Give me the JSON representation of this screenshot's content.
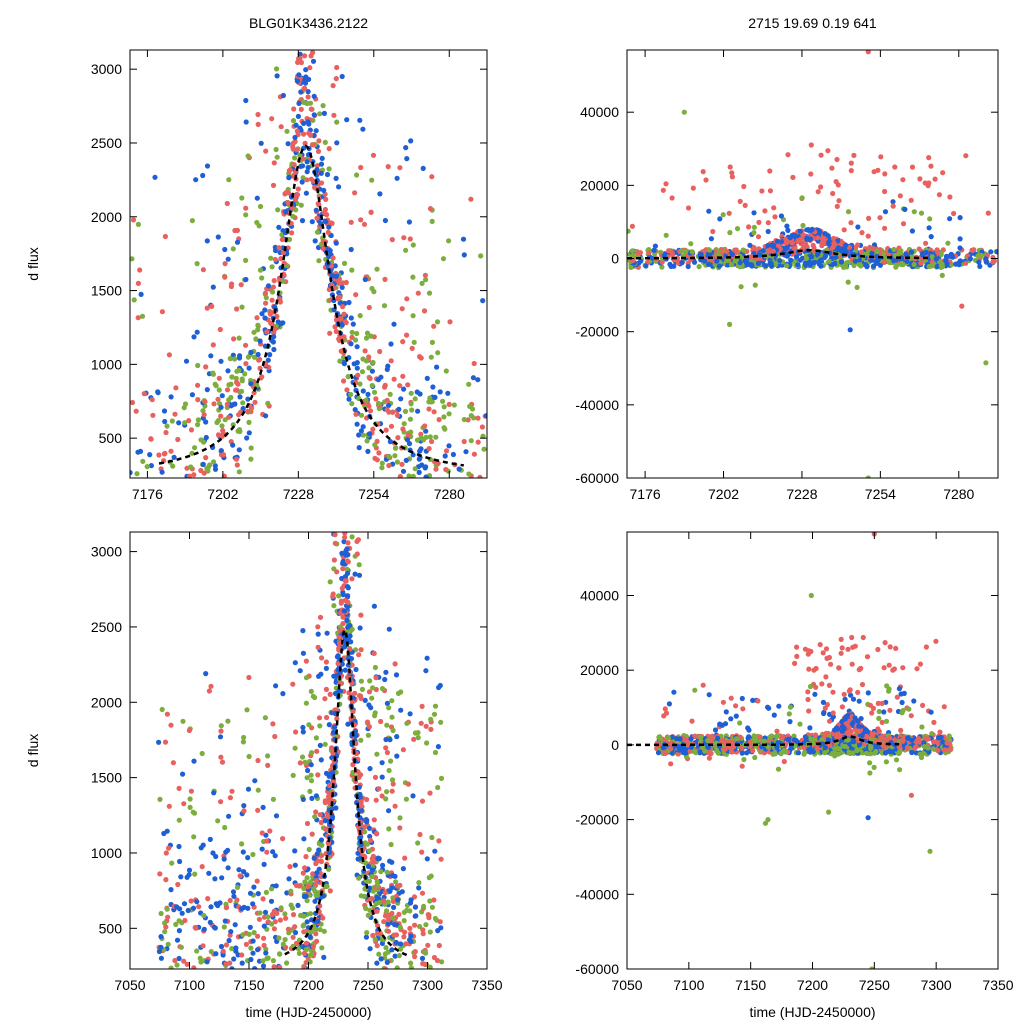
{
  "chart_data": [
    {
      "id": "top-left",
      "type": "scatter",
      "title": "BLG01K3436.2122",
      "xlabel": "",
      "ylabel": "d flux",
      "xlim": [
        7170,
        7293
      ],
      "ylim": [
        230,
        3130
      ],
      "xticks": [
        7176,
        7202,
        7228,
        7254,
        7280
      ],
      "yticks": [
        500,
        1000,
        1500,
        2000,
        2500,
        3000
      ],
      "series": [
        {
          "color": "#7cae3e",
          "role": "green"
        },
        {
          "color": "#1f5fd6",
          "role": "blue"
        },
        {
          "color": "#e8615f",
          "role": "red"
        }
      ],
      "model": {
        "t0": 7230.5,
        "peak": 2480,
        "tE": 10.5,
        "base": 235,
        "style": "dashed",
        "color": "#000000"
      }
    },
    {
      "id": "top-right",
      "type": "scatter",
      "title": "2715  19.69  0.19  641",
      "xlabel": "",
      "ylabel": "",
      "xlim": [
        7170,
        7293
      ],
      "ylim": [
        -60000,
        57000
      ],
      "xticks": [
        7176,
        7202,
        7228,
        7254,
        7280
      ],
      "yticks": [
        -60000,
        -40000,
        -20000,
        0,
        20000,
        40000
      ],
      "series": [
        {
          "color": "#7cae3e",
          "role": "green"
        },
        {
          "color": "#1f5fd6",
          "role": "blue"
        },
        {
          "color": "#e8615f",
          "role": "red"
        }
      ],
      "outliers": [
        {
          "x": 7189,
          "y": 40000,
          "c": 0
        },
        {
          "x": 7250,
          "y": 56500,
          "c": 2
        },
        {
          "x": 7244,
          "y": -19500,
          "c": 1
        },
        {
          "x": 7250,
          "y": -60000,
          "c": 0
        },
        {
          "x": 7289,
          "y": -28500,
          "c": 0
        },
        {
          "x": 7204,
          "y": -18000,
          "c": 0
        },
        {
          "x": 7281,
          "y": -13000,
          "c": 2
        }
      ],
      "model": {
        "t0": 7230.5,
        "peak": 2480,
        "tE": 10.5,
        "base": 235,
        "style": "dashed",
        "color": "#000000"
      }
    },
    {
      "id": "bottom-left",
      "type": "scatter",
      "title": "",
      "xlabel": "time (HJD-2450000)",
      "ylabel": "d flux",
      "xlim": [
        7050,
        7350
      ],
      "ylim": [
        230,
        3130
      ],
      "xticks": [
        7050,
        7100,
        7150,
        7200,
        7250,
        7300,
        7350
      ],
      "yticks": [
        500,
        1000,
        1500,
        2000,
        2500,
        3000
      ],
      "series": [
        {
          "color": "#7cae3e",
          "role": "green"
        },
        {
          "color": "#1f5fd6",
          "role": "blue"
        },
        {
          "color": "#e8615f",
          "role": "red"
        }
      ],
      "model": {
        "t0": 7230.5,
        "peak": 2480,
        "tE": 10.5,
        "base": 235,
        "style": "dashed",
        "color": "#000000"
      }
    },
    {
      "id": "bottom-right",
      "type": "scatter",
      "title": "",
      "xlabel": "time (HJD-2450000)",
      "ylabel": "",
      "xlim": [
        7050,
        7350
      ],
      "ylim": [
        -60000,
        57000
      ],
      "xticks": [
        7050,
        7100,
        7150,
        7200,
        7250,
        7300,
        7350
      ],
      "yticks": [
        -60000,
        -40000,
        -20000,
        0,
        20000,
        40000
      ],
      "series": [
        {
          "color": "#7cae3e",
          "role": "green"
        },
        {
          "color": "#1f5fd6",
          "role": "blue"
        },
        {
          "color": "#e8615f",
          "role": "red"
        }
      ],
      "outliers": [
        {
          "x": 7199,
          "y": 40000,
          "c": 0
        },
        {
          "x": 7250,
          "y": 56500,
          "c": 2
        },
        {
          "x": 7245,
          "y": -19500,
          "c": 1
        },
        {
          "x": 7248,
          "y": -60000,
          "c": 0
        },
        {
          "x": 7295,
          "y": -28500,
          "c": 0
        },
        {
          "x": 7164,
          "y": -20000,
          "c": 0
        },
        {
          "x": 7162,
          "y": -21000,
          "c": 0
        },
        {
          "x": 7213,
          "y": -18000,
          "c": 0
        },
        {
          "x": 7280,
          "y": -13500,
          "c": 2
        }
      ],
      "model": {
        "t0": 7230.5,
        "peak": 2480,
        "tE": 10.5,
        "base": 235,
        "style": "dashed",
        "color": "#000000"
      }
    }
  ]
}
